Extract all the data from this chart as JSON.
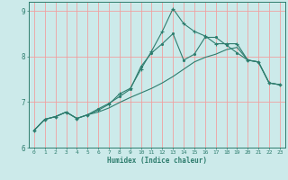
{
  "title": "",
  "xlabel": "Humidex (Indice chaleur)",
  "bg_color": "#cceaea",
  "line_color": "#2e7d6e",
  "grid_color": "#f0a0a0",
  "xlim": [
    -0.5,
    23.5
  ],
  "ylim": [
    6.0,
    9.2
  ],
  "yticks": [
    6,
    7,
    8,
    9
  ],
  "xticks": [
    0,
    1,
    2,
    3,
    4,
    5,
    6,
    7,
    8,
    9,
    10,
    11,
    12,
    13,
    14,
    15,
    16,
    17,
    18,
    19,
    20,
    21,
    22,
    23
  ],
  "series1_x": [
    0,
    1,
    2,
    3,
    4,
    5,
    6,
    7,
    8,
    9,
    10,
    11,
    12,
    13,
    14,
    15,
    16,
    17,
    18,
    19,
    20,
    21,
    22,
    23
  ],
  "series1_y": [
    6.38,
    6.62,
    6.68,
    6.78,
    6.64,
    6.72,
    6.78,
    6.87,
    6.99,
    7.1,
    7.2,
    7.3,
    7.42,
    7.56,
    7.72,
    7.88,
    7.98,
    8.05,
    8.15,
    8.2,
    7.92,
    7.88,
    7.42,
    7.38
  ],
  "series2_x": [
    0,
    1,
    2,
    3,
    4,
    5,
    6,
    7,
    8,
    9,
    10,
    11,
    12,
    13,
    14,
    15,
    16,
    17,
    18,
    19,
    20,
    21,
    22,
    23
  ],
  "series2_y": [
    6.38,
    6.62,
    6.68,
    6.78,
    6.64,
    6.72,
    6.85,
    6.97,
    7.12,
    7.28,
    7.78,
    8.08,
    8.28,
    8.5,
    7.92,
    8.05,
    8.42,
    8.42,
    8.25,
    8.08,
    7.92,
    7.88,
    7.42,
    7.38
  ],
  "series3_x": [
    0,
    1,
    2,
    3,
    4,
    5,
    6,
    7,
    8,
    9,
    10,
    11,
    12,
    13,
    14,
    15,
    16,
    17,
    18,
    19,
    20,
    21,
    22,
    23
  ],
  "series3_y": [
    6.38,
    6.62,
    6.68,
    6.78,
    6.64,
    6.72,
    6.82,
    6.95,
    7.18,
    7.3,
    7.72,
    8.12,
    8.55,
    9.05,
    8.72,
    8.55,
    8.45,
    8.28,
    8.28,
    8.28,
    7.92,
    7.88,
    7.42,
    7.38
  ]
}
